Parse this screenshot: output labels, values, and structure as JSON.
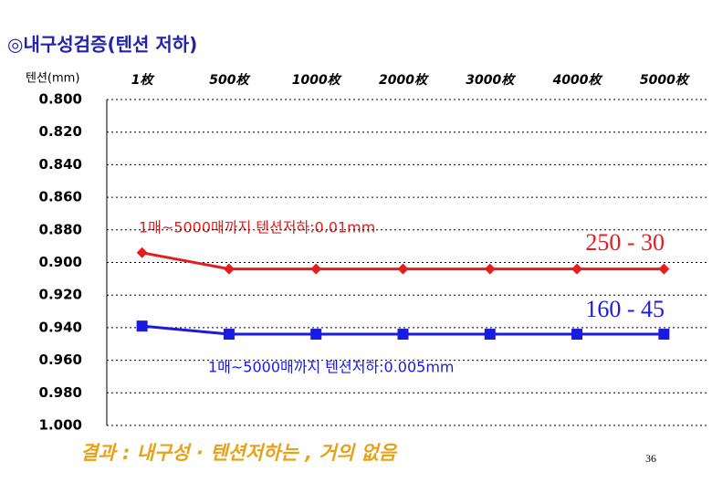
{
  "chart_data": {
    "type": "line",
    "title": "◎내구성검증(텐션 저하)",
    "ylabel": "텐션(mm)",
    "categories": [
      "1枚",
      "500枚",
      "1000枚",
      "2000枚",
      "3000枚",
      "4000枚",
      "5000枚"
    ],
    "series": [
      {
        "name": "250 - 30",
        "color": "#e41e1e",
        "marker": "diamond",
        "values": [
          0.894,
          0.904,
          0.904,
          0.904,
          0.904,
          0.904,
          0.904
        ]
      },
      {
        "name": "160 - 45",
        "color": "#1a1ae0",
        "marker": "square",
        "values": [
          0.939,
          0.944,
          0.944,
          0.944,
          0.944,
          0.944,
          0.944
        ]
      }
    ],
    "ylim": [
      1.0,
      0.8
    ],
    "yticks": [
      {
        "value": 0.8,
        "label": "0.800"
      },
      {
        "value": 0.82,
        "label": "0.820"
      },
      {
        "value": 0.84,
        "label": "0.840"
      },
      {
        "value": 0.86,
        "label": "0.860"
      },
      {
        "value": 0.88,
        "label": "0.880"
      },
      {
        "value": 0.9,
        "label": "0.900"
      },
      {
        "value": 0.92,
        "label": "0.920"
      },
      {
        "value": 0.94,
        "label": "0.940"
      },
      {
        "value": 0.96,
        "label": "0.960"
      },
      {
        "value": 0.98,
        "label": "0.980"
      },
      {
        "value": 1.0,
        "label": "1.000"
      }
    ],
    "grid": true,
    "annotations": [
      "1매~5000매까지 텐션저하:0.01mm",
      "1매~5000매까지 텐션저하:0.005mm"
    ],
    "footer": "결과 : 내구성 · 텐션저하는 , 거의 없음",
    "page_number": "36"
  }
}
